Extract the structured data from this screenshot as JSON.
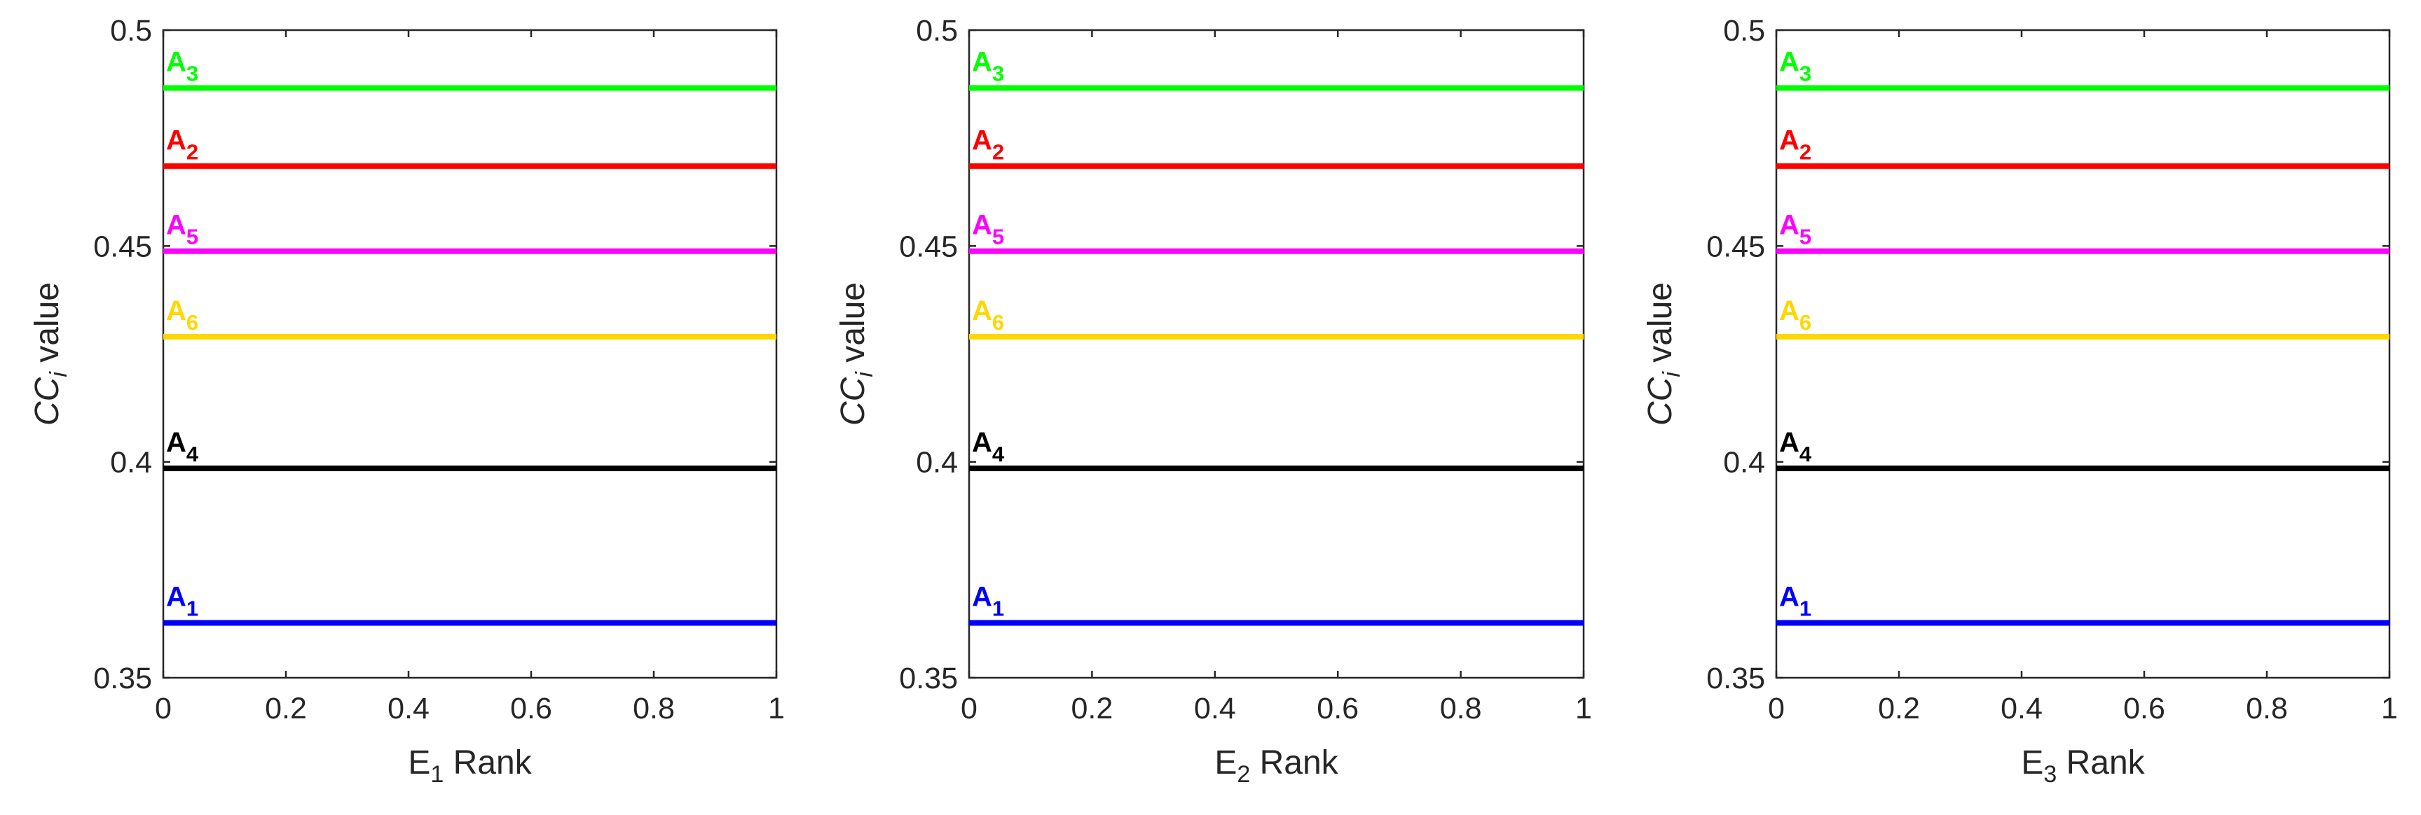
{
  "chart_data": [
    {
      "type": "line",
      "title": "",
      "xlabel": "E",
      "xlabel_sub": "1",
      "xlabel_suffix": " Rank",
      "ylabel": "CC",
      "ylabel_sub": "i",
      "ylabel_suffix": " value",
      "xlim": [
        0,
        1
      ],
      "ylim": [
        0.35,
        0.5
      ],
      "xticks": [
        "0",
        "0.2",
        "0.4",
        "0.6",
        "0.8",
        "1"
      ],
      "yticks": [
        "0.35",
        "0.4",
        "0.45",
        "0.5"
      ],
      "grid": false,
      "series": [
        {
          "name": "A",
          "sub": "1",
          "value": 0.3627,
          "color": "#0000ff"
        },
        {
          "name": "A",
          "sub": "2",
          "value": 0.4685,
          "color": "#ff0000"
        },
        {
          "name": "A",
          "sub": "3",
          "value": 0.4866,
          "color": "#00ff00"
        },
        {
          "name": "A",
          "sub": "4",
          "value": 0.3985,
          "color": "#000000"
        },
        {
          "name": "A",
          "sub": "5",
          "value": 0.4488,
          "color": "#ff00ff"
        },
        {
          "name": "A",
          "sub": "6",
          "value": 0.429,
          "color": "#ffd700"
        }
      ]
    },
    {
      "type": "line",
      "title": "",
      "xlabel": "E",
      "xlabel_sub": "2",
      "xlabel_suffix": " Rank",
      "ylabel": "CC",
      "ylabel_sub": "i",
      "ylabel_suffix": " value",
      "xlim": [
        0,
        1
      ],
      "ylim": [
        0.35,
        0.5
      ],
      "xticks": [
        "0",
        "0.2",
        "0.4",
        "0.6",
        "0.8",
        "1"
      ],
      "yticks": [
        "0.35",
        "0.4",
        "0.45",
        "0.5"
      ],
      "grid": false,
      "series": [
        {
          "name": "A",
          "sub": "1",
          "value": 0.3627,
          "color": "#0000ff"
        },
        {
          "name": "A",
          "sub": "2",
          "value": 0.4685,
          "color": "#ff0000"
        },
        {
          "name": "A",
          "sub": "3",
          "value": 0.4866,
          "color": "#00ff00"
        },
        {
          "name": "A",
          "sub": "4",
          "value": 0.3985,
          "color": "#000000"
        },
        {
          "name": "A",
          "sub": "5",
          "value": 0.4488,
          "color": "#ff00ff"
        },
        {
          "name": "A",
          "sub": "6",
          "value": 0.429,
          "color": "#ffd700"
        }
      ]
    },
    {
      "type": "line",
      "title": "",
      "xlabel": "E",
      "xlabel_sub": "3",
      "xlabel_suffix": " Rank",
      "ylabel": "CC",
      "ylabel_sub": "i",
      "ylabel_suffix": " value",
      "xlim": [
        0,
        1
      ],
      "ylim": [
        0.35,
        0.5
      ],
      "xticks": [
        "0",
        "0.2",
        "0.4",
        "0.6",
        "0.8",
        "1"
      ],
      "yticks": [
        "0.35",
        "0.4",
        "0.45",
        "0.5"
      ],
      "grid": false,
      "series": [
        {
          "name": "A",
          "sub": "1",
          "value": 0.3627,
          "color": "#0000ff"
        },
        {
          "name": "A",
          "sub": "2",
          "value": 0.4685,
          "color": "#ff0000"
        },
        {
          "name": "A",
          "sub": "3",
          "value": 0.4866,
          "color": "#00ff00"
        },
        {
          "name": "A",
          "sub": "4",
          "value": 0.3985,
          "color": "#000000"
        },
        {
          "name": "A",
          "sub": "5",
          "value": 0.4488,
          "color": "#ff00ff"
        },
        {
          "name": "A",
          "sub": "6",
          "value": 0.429,
          "color": "#ffd700"
        }
      ]
    }
  ]
}
